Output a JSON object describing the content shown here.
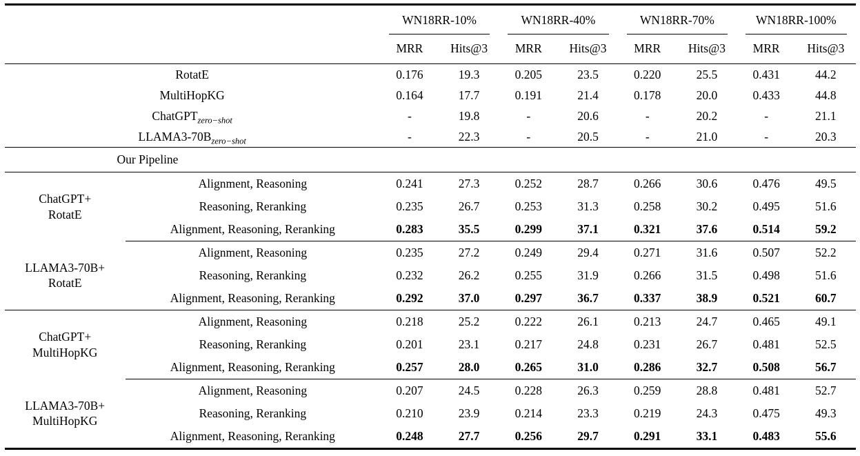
{
  "table": {
    "column_groups": [
      {
        "label": "WN18RR-10%"
      },
      {
        "label": "WN18RR-40%"
      },
      {
        "label": "WN18RR-70%"
      },
      {
        "label": "WN18RR-100%"
      }
    ],
    "sub_headers": [
      "MRR",
      "Hits@3"
    ],
    "baselines": [
      {
        "name": "RotatE",
        "subscript": "",
        "values": [
          "0.176",
          "19.3",
          "0.205",
          "23.5",
          "0.220",
          "25.5",
          "0.431",
          "44.2"
        ]
      },
      {
        "name": "MultiHopKG",
        "subscript": "",
        "values": [
          "0.164",
          "17.7",
          "0.191",
          "21.4",
          "0.178",
          "20.0",
          "0.433",
          "44.8"
        ]
      },
      {
        "name": "ChatGPT",
        "subscript": "zero−shot",
        "values": [
          "-",
          "19.8",
          "-",
          "20.6",
          "-",
          "20.2",
          "-",
          "21.1"
        ]
      },
      {
        "name": "LLAMA3-70B",
        "subscript": "zero−shot",
        "values": [
          "-",
          "22.3",
          "-",
          "20.5",
          "-",
          "21.0",
          "-",
          "20.3"
        ]
      }
    ],
    "section_label": "Our Pipeline",
    "groups": [
      {
        "name_line1": "ChatGPT+",
        "name_line2": "RotatE",
        "divider_after": "partial",
        "rows": [
          {
            "method": "Alignment, Reasoning",
            "bold": false,
            "values": [
              "0.241",
              "27.3",
              "0.252",
              "28.7",
              "0.266",
              "30.6",
              "0.476",
              "49.5"
            ]
          },
          {
            "method": "Reasoning, Reranking",
            "bold": false,
            "values": [
              "0.235",
              "26.7",
              "0.253",
              "31.3",
              "0.258",
              "30.2",
              "0.495",
              "51.6"
            ]
          },
          {
            "method": "Alignment, Reasoning, Reranking",
            "bold": true,
            "values": [
              "0.283",
              "35.5",
              "0.299",
              "37.1",
              "0.321",
              "37.6",
              "0.514",
              "59.2"
            ]
          }
        ]
      },
      {
        "name_line1": "LLAMA3-70B+",
        "name_line2": "RotatE",
        "divider_after": "full",
        "rows": [
          {
            "method": "Alignment, Reasoning",
            "bold": false,
            "values": [
              "0.235",
              "27.2",
              "0.249",
              "29.4",
              "0.271",
              "31.6",
              "0.507",
              "52.2"
            ]
          },
          {
            "method": "Reasoning, Reranking",
            "bold": false,
            "values": [
              "0.232",
              "26.2",
              "0.255",
              "31.9",
              "0.266",
              "31.5",
              "0.498",
              "51.6"
            ]
          },
          {
            "method": "Alignment, Reasoning, Reranking",
            "bold": true,
            "values": [
              "0.292",
              "37.0",
              "0.297",
              "36.7",
              "0.337",
              "38.9",
              "0.521",
              "60.7"
            ]
          }
        ]
      },
      {
        "name_line1": "ChatGPT+",
        "name_line2": "MultiHopKG",
        "divider_after": "partial",
        "rows": [
          {
            "method": "Alignment, Reasoning",
            "bold": false,
            "values": [
              "0.218",
              "25.2",
              "0.222",
              "26.1",
              "0.213",
              "24.7",
              "0.465",
              "49.1"
            ]
          },
          {
            "method": "Reasoning, Reranking",
            "bold": false,
            "values": [
              "0.201",
              "23.1",
              "0.217",
              "24.8",
              "0.231",
              "26.7",
              "0.481",
              "52.5"
            ]
          },
          {
            "method": "Alignment, Reasoning, Reranking",
            "bold": true,
            "values": [
              "0.257",
              "28.0",
              "0.265",
              "31.0",
              "0.286",
              "32.7",
              "0.508",
              "56.7"
            ]
          }
        ]
      },
      {
        "name_line1": "LLAMA3-70B+",
        "name_line2": "MultiHopKG",
        "divider_after": "none",
        "rows": [
          {
            "method": "Alignment, Reasoning",
            "bold": false,
            "values": [
              "0.207",
              "24.5",
              "0.228",
              "26.3",
              "0.259",
              "28.8",
              "0.481",
              "52.7"
            ]
          },
          {
            "method": "Reasoning, Reranking",
            "bold": false,
            "values": [
              "0.210",
              "23.9",
              "0.214",
              "23.3",
              "0.219",
              "24.3",
              "0.475",
              "49.3"
            ]
          },
          {
            "method": "Alignment, Reasoning, Reranking",
            "bold": true,
            "values": [
              "0.248",
              "27.7",
              "0.256",
              "29.7",
              "0.291",
              "33.1",
              "0.483",
              "55.6"
            ]
          }
        ]
      }
    ]
  }
}
